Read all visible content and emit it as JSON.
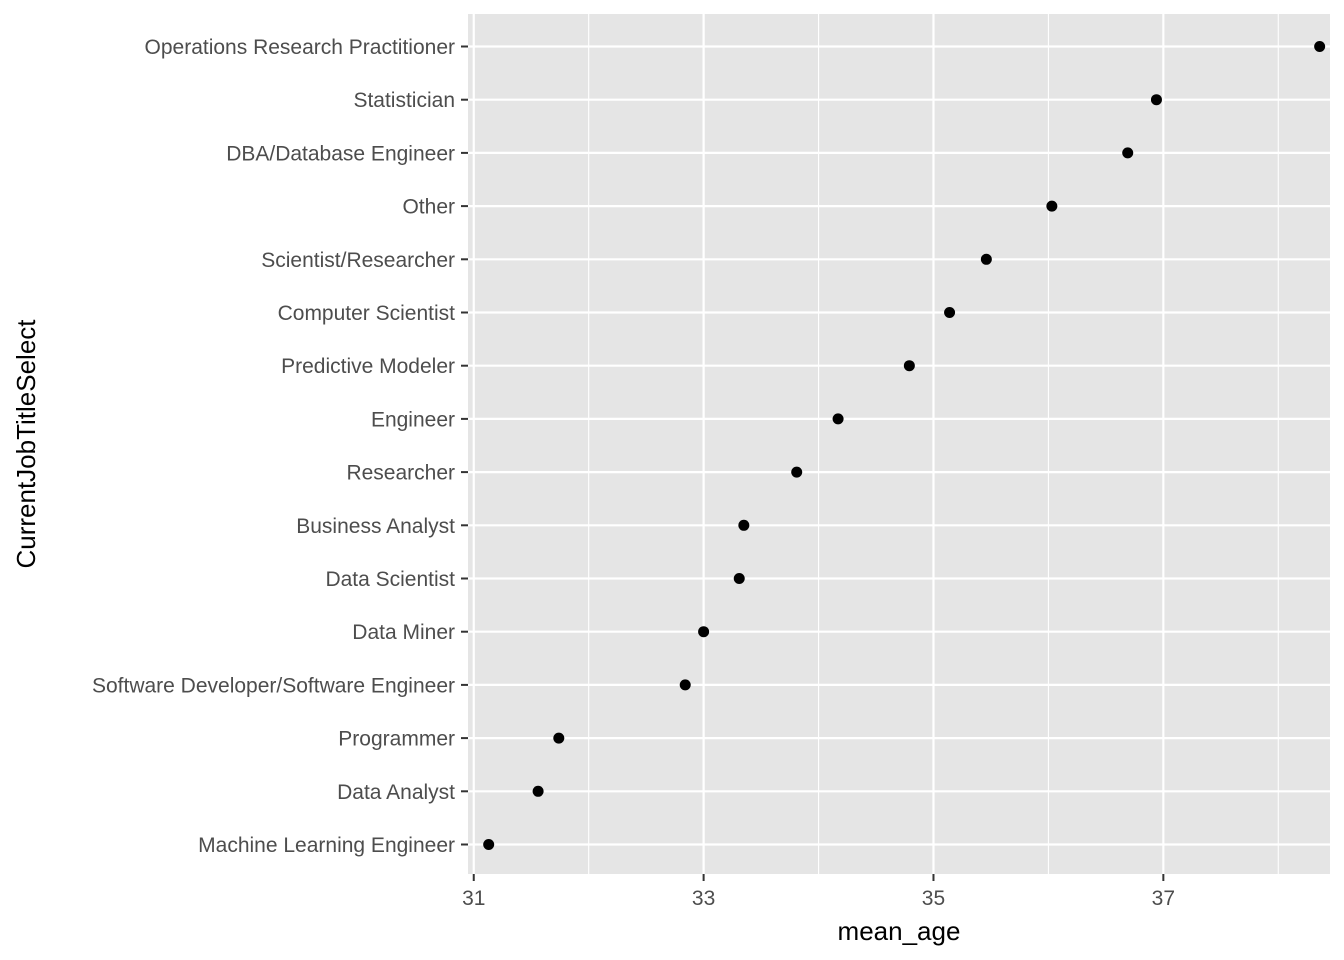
{
  "chart_data": {
    "type": "scatter",
    "xlabel": "mean_age",
    "ylabel": "CurrentJobTitleSelect",
    "xlim": [
      30.95,
      38.45
    ],
    "x_ticks": [
      31,
      33,
      35,
      37
    ],
    "x_tick_labels": [
      "31",
      "33",
      "35",
      "37"
    ],
    "grid": true,
    "legend": "none",
    "categories": [
      "Machine Learning Engineer",
      "Data Analyst",
      "Programmer",
      "Software Developer/Software Engineer",
      "Data Miner",
      "Data Scientist",
      "Business Analyst",
      "Researcher",
      "Engineer",
      "Predictive Modeler",
      "Computer Scientist",
      "Scientist/Researcher",
      "Other",
      "DBA/Database Engineer",
      "Statistician",
      "Operations Research Practitioner"
    ],
    "values": [
      31.13,
      31.56,
      31.74,
      32.84,
      33.0,
      33.31,
      33.35,
      33.81,
      34.17,
      34.79,
      35.14,
      35.46,
      36.03,
      36.69,
      36.94,
      38.36
    ],
    "colors": {
      "panel": "#e5e5e5",
      "grid": "#ffffff",
      "point": "#000000",
      "tick_text": "#4d4d4d",
      "tick_mark": "#333333"
    }
  }
}
